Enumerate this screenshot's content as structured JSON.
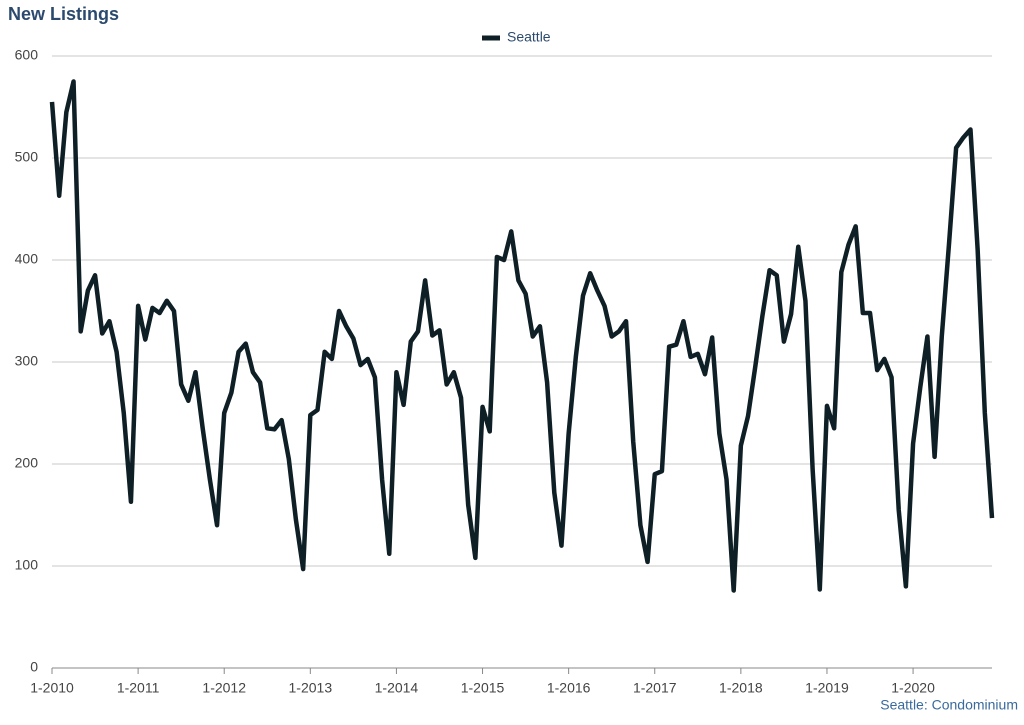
{
  "chart_data": {
    "type": "line",
    "title": "New Listings",
    "note": "Seattle: Condominium",
    "categories": [
      "1-2010",
      null,
      null,
      null,
      null,
      null,
      null,
      null,
      null,
      null,
      null,
      null,
      "1-2011",
      null,
      null,
      null,
      null,
      null,
      null,
      null,
      null,
      null,
      null,
      null,
      "1-2012",
      null,
      null,
      null,
      null,
      null,
      null,
      null,
      null,
      null,
      null,
      null,
      "1-2013",
      null,
      null,
      null,
      null,
      null,
      null,
      null,
      null,
      null,
      null,
      null,
      "1-2014",
      null,
      null,
      null,
      null,
      null,
      null,
      null,
      null,
      null,
      null,
      null,
      "1-2015",
      null,
      null,
      null,
      null,
      null,
      null,
      null,
      null,
      null,
      null,
      null,
      "1-2016",
      null,
      null,
      null,
      null,
      null,
      null,
      null,
      null,
      null,
      null,
      null,
      "1-2017",
      null,
      null,
      null,
      null,
      null,
      null,
      null,
      null,
      null,
      null,
      null,
      "1-2018",
      null,
      null,
      null,
      null,
      null,
      null,
      null,
      null,
      null,
      null,
      null,
      "1-2019",
      null,
      null,
      null,
      null,
      null,
      null,
      null,
      null,
      null,
      null,
      null,
      "1-2020",
      null,
      null,
      null,
      null,
      null,
      null,
      null,
      null,
      null,
      null,
      null
    ],
    "series": [
      {
        "name": "Seattle",
        "color": "#0f1f26",
        "values": [
          555,
          463,
          545,
          575,
          330,
          370,
          385,
          328,
          340,
          310,
          250,
          163,
          355,
          322,
          353,
          348,
          360,
          350,
          278,
          262,
          290,
          235,
          185,
          140,
          250,
          270,
          310,
          318,
          290,
          280,
          235,
          234,
          243,
          205,
          145,
          97,
          248,
          253,
          310,
          303,
          350,
          335,
          323,
          297,
          303,
          285,
          185,
          112,
          290,
          258,
          320,
          330,
          380,
          326,
          331,
          278,
          290,
          265,
          160,
          108,
          256,
          232,
          403,
          400,
          428,
          380,
          367,
          325,
          335,
          280,
          172,
          120,
          230,
          305,
          365,
          387,
          370,
          355,
          325,
          330,
          340,
          222,
          140,
          104,
          190,
          193,
          315,
          317,
          340,
          305,
          308,
          288,
          324,
          230,
          185,
          76,
          218,
          247,
          295,
          345,
          390,
          385,
          320,
          347,
          413,
          360,
          195,
          77,
          257,
          235,
          388,
          415,
          433,
          348,
          348,
          292,
          303,
          285,
          155,
          80,
          220,
          275,
          325,
          207,
          325,
          415,
          510,
          520,
          528,
          410,
          250,
          147
        ]
      }
    ],
    "ylim": [
      0,
      600
    ],
    "yticks": [
      0,
      100,
      200,
      300,
      400,
      500,
      600
    ],
    "grid": true,
    "legend": "top"
  }
}
